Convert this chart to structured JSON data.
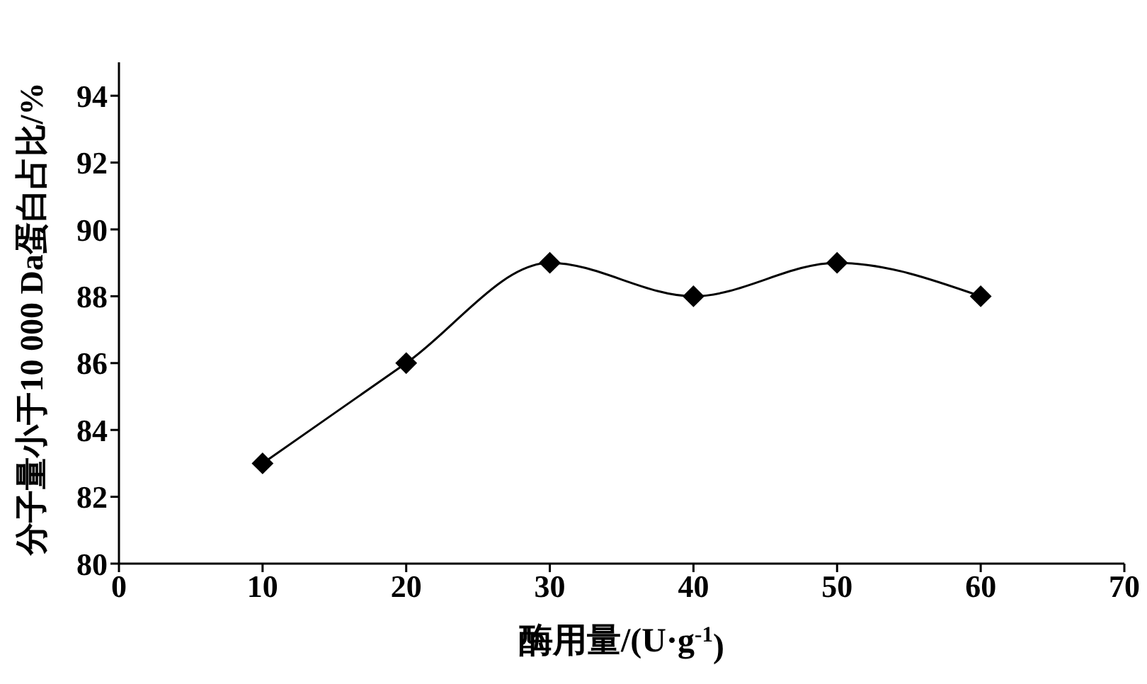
{
  "chart_data": {
    "type": "line",
    "xlabel": "酶用量/(U·g$^{-1}$)",
    "ylabel": "分子量小于10 000 Da蛋白占比/%",
    "x": [
      10,
      20,
      30,
      40,
      50,
      60
    ],
    "series": [
      {
        "color": "#000000",
        "values": [
          83,
          86,
          89,
          88,
          89,
          88
        ]
      }
    ],
    "xlim": [
      0,
      70
    ],
    "xticks": [
      0,
      10,
      20,
      30,
      40,
      50,
      60,
      70
    ],
    "ylim": [
      80,
      95
    ],
    "yticks": [
      80,
      82,
      84,
      86,
      88,
      90,
      92,
      94
    ],
    "grid": false,
    "legend": false,
    "marker": "diamond",
    "line_style": "solid"
  }
}
